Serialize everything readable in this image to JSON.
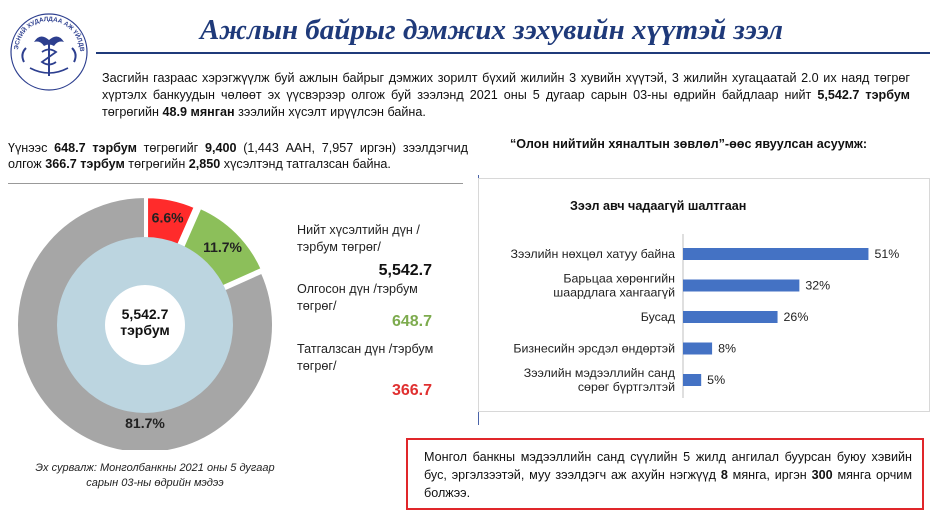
{
  "header": {
    "title": "Ажлын байрыг дэмжих зэхувийн хүүтэй зээл",
    "logo_text": "МОНГОЛЫН ҮНДЭСНИЙ ХУДАЛДАА АЖ ҮЙЛДВЭРИЙН ТАНХИМ"
  },
  "intro": {
    "t1": "Засгийн газраас хэрэгжүүлж буй ажлын байрыг дэмжих зорилт бүхий  жилийн 3 хувийн хүүтэй, 3 жилийн хугацаатай 2.0 их наяд төгрөг хүртэлх банкуудын чөлөөт эх үүсвэрээр олгож буй зээлэнд 2021 оны 5 дугаар сарын 03-ны өдрийн байдлаар нийт ",
    "b1": "5,542.7 тэрбум",
    "t2": " төгрөгийн ",
    "b2": "48.9 мянган",
    "t3": " зээлийн хүсэлт ирүүлсэн байна."
  },
  "summary": {
    "t1": "Үүнээс ",
    "b1": "648.7 тэрбум",
    "t2": " төгрөгийг ",
    "b2": "9,400",
    "t3": " (1,443 ААН, 7,957 иргэн) зээлдэгчид олгож  ",
    "b3": "366.7 тэрбум",
    "t4": " төгрөгийн ",
    "b4": "2,850",
    "t5": " хүсэлтэнд татгалзсан байна."
  },
  "donut": {
    "center_value": "5,542.7",
    "center_unit": "тэрбум",
    "slices": [
      {
        "label": "81.7%",
        "value": 81.7,
        "color": "#a6a6a6"
      },
      {
        "label": "6.6%",
        "value": 6.6,
        "color": "#ff2b2b"
      },
      {
        "label": "11.7%",
        "value": 11.7,
        "color": "#8cbf5a"
      }
    ],
    "inner_color": "#bcd5e0"
  },
  "stats": {
    "total_label": "Нийт хүсэлтийн дүн /тэрбум төгрөг/",
    "total_value": "5,542.7",
    "granted_label": "Олгосон дүн /тэрбум төгрөг/",
    "granted_value": "648.7",
    "rejected_label": "Татгалзсан дүн /тэрбум төгрөг/",
    "rejected_value": "366.7"
  },
  "source": "Эх сурвалж: Монголбанкны 2021 оны 5 дугаар сарын 03-ны өдрийн мэдээ",
  "survey": {
    "title": "“Олон нийтийн хяналтын зөвлөл”-өөс явуулсан асуумж:"
  },
  "chart_data": {
    "type": "bar",
    "orientation": "horizontal",
    "title": "Зээл авч чадаагүй шалтгаан",
    "categories": [
      "Зээлийн нөхцөл хатуу байна",
      "Барьцаа хөрөнгийн шаардлага хангаагүй",
      "Бусад",
      "Бизнесийн эрсдэл өндөртэй",
      "Зээлийн мэдээллийн санд сөрөг бүртгэлтэй"
    ],
    "values": [
      51,
      32,
      26,
      8,
      5
    ],
    "data_labels": [
      "51%",
      "32%",
      "26%",
      "8%",
      "5%"
    ],
    "xlim": [
      0,
      55
    ],
    "bar_color": "#4472c4",
    "grid": false
  },
  "note": {
    "t1": "Монгол банкны мэдээллийн санд сүүлийн 5 жилд ангилал буурсан буюу хэвийн бус, эргэлзээтэй, муу зээлдэгч аж ахуйн нэгжүүд ",
    "b1": "8",
    "t2": " мянга, иргэн ",
    "b2": "300",
    "t3": " мянга орчим болжээ."
  },
  "colors": {
    "title": "#1f3a7a",
    "green": "#7dab4e",
    "red": "#e03030",
    "note_border": "#e0262a"
  }
}
